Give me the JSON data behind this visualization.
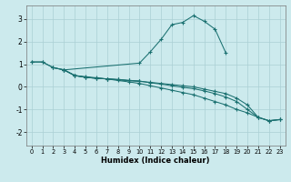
{
  "xlabel": "Humidex (Indice chaleur)",
  "bg_color": "#cceaed",
  "line_color": "#1a7070",
  "grid_color": "#aacfd4",
  "xlim": [
    -0.5,
    23.5
  ],
  "ylim": [
    -2.6,
    3.6
  ],
  "xticks": [
    0,
    1,
    2,
    3,
    4,
    5,
    6,
    7,
    8,
    9,
    10,
    11,
    12,
    13,
    14,
    15,
    16,
    17,
    18,
    19,
    20,
    21,
    22,
    23
  ],
  "yticks": [
    -2,
    -1,
    0,
    1,
    2,
    3
  ],
  "lines": [
    {
      "x": [
        0,
        1,
        2,
        3,
        10,
        11,
        12,
        13,
        14,
        15,
        16,
        17,
        18
      ],
      "y": [
        1.1,
        1.1,
        0.85,
        0.75,
        1.05,
        1.55,
        2.1,
        2.75,
        2.85,
        3.15,
        2.9,
        2.55,
        1.5
      ]
    },
    {
      "x": [
        0,
        1,
        2,
        3,
        4,
        5,
        6,
        7,
        8,
        9,
        10,
        11,
        12,
        13,
        14,
        15,
        16,
        17,
        18,
        19,
        20,
        21,
        22,
        23
      ],
      "y": [
        1.1,
        1.1,
        0.85,
        0.75,
        0.5,
        0.45,
        0.4,
        0.35,
        0.28,
        0.22,
        0.15,
        0.05,
        -0.05,
        -0.15,
        -0.25,
        -0.35,
        -0.5,
        -0.65,
        -0.8,
        -1.0,
        -1.15,
        -1.35,
        -1.5,
        -1.45
      ]
    },
    {
      "x": [
        3,
        4,
        5,
        6,
        7,
        8,
        9,
        10,
        11,
        12,
        13,
        14,
        15,
        16,
        17,
        18,
        19,
        20,
        21,
        22,
        23
      ],
      "y": [
        0.75,
        0.5,
        0.42,
        0.38,
        0.35,
        0.32,
        0.28,
        0.25,
        0.2,
        0.15,
        0.1,
        0.05,
        0.0,
        -0.1,
        -0.2,
        -0.3,
        -0.5,
        -0.8,
        -1.35,
        -1.5,
        -1.45
      ]
    },
    {
      "x": [
        3,
        4,
        5,
        6,
        7,
        8,
        9,
        10,
        11,
        12,
        13,
        14,
        15,
        16,
        17,
        18,
        19,
        20,
        21,
        22,
        23
      ],
      "y": [
        0.75,
        0.5,
        0.42,
        0.38,
        0.35,
        0.32,
        0.28,
        0.25,
        0.18,
        0.12,
        0.05,
        -0.02,
        -0.08,
        -0.18,
        -0.3,
        -0.45,
        -0.65,
        -1.0,
        -1.35,
        -1.5,
        -1.45
      ]
    },
    {
      "x": [
        2,
        3,
        4,
        5,
        6,
        7,
        8,
        9,
        10
      ],
      "y": [
        0.85,
        0.75,
        0.5,
        0.42,
        0.38,
        0.35,
        0.32,
        0.28,
        0.25
      ]
    }
  ]
}
